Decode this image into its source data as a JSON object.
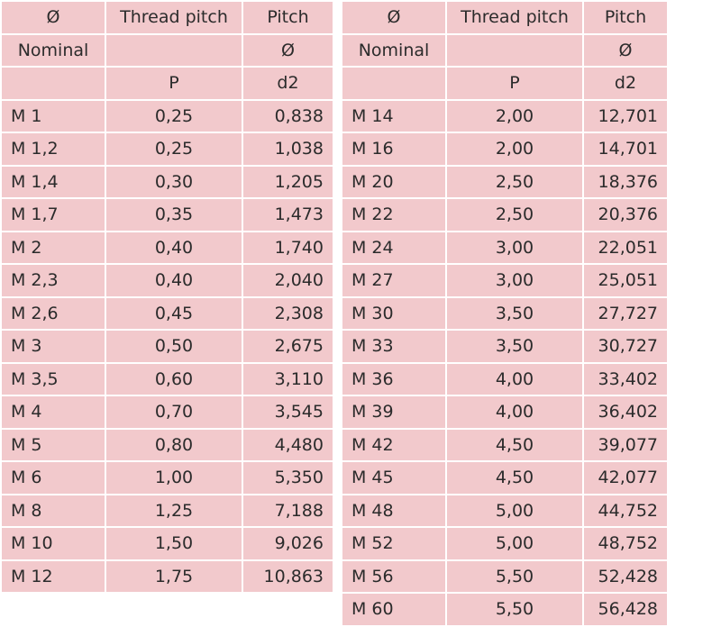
{
  "tables": [
    {
      "header": [
        [
          "Ø",
          "Thread pitch",
          "Pitch"
        ],
        [
          "Nominal",
          null,
          "Ø"
        ],
        [
          null,
          "P",
          "d2"
        ]
      ],
      "rows": [
        [
          "M 1",
          "0,25",
          "0,838"
        ],
        [
          "M 1,2",
          "0,25",
          "1,038"
        ],
        [
          "M 1,4",
          "0,30",
          "1,205"
        ],
        [
          "M 1,7",
          "0,35",
          "1,473"
        ],
        [
          "M 2",
          "0,40",
          "1,740"
        ],
        [
          "M 2,3",
          "0,40",
          "2,040"
        ],
        [
          "M 2,6",
          "0,45",
          "2,308"
        ],
        [
          "M 3",
          "0,50",
          "2,675"
        ],
        [
          "M 3,5",
          "0,60",
          "3,110"
        ],
        [
          "M 4",
          "0,70",
          "3,545"
        ],
        [
          "M 5",
          "0,80",
          "4,480"
        ],
        [
          "M 6",
          "1,00",
          "5,350"
        ],
        [
          "M 8",
          "1,25",
          "7,188"
        ],
        [
          "M 10",
          "1,50",
          "9,026"
        ],
        [
          "M 12",
          "1,75",
          "10,863"
        ]
      ]
    },
    {
      "header": [
        [
          "Ø",
          "Thread pitch",
          "Pitch"
        ],
        [
          "Nominal",
          null,
          "Ø"
        ],
        [
          null,
          "P",
          "d2"
        ]
      ],
      "rows": [
        [
          "M 14",
          "2,00",
          "12,701"
        ],
        [
          "M 16",
          "2,00",
          "14,701"
        ],
        [
          "M 20",
          "2,50",
          "18,376"
        ],
        [
          "M 22",
          "2,50",
          "20,376"
        ],
        [
          "M 24",
          "3,00",
          "22,051"
        ],
        [
          "M 27",
          "3,00",
          "25,051"
        ],
        [
          "M 30",
          "3,50",
          "27,727"
        ],
        [
          "M 33",
          "3,50",
          "30,727"
        ],
        [
          "M 36",
          "4,00",
          "33,402"
        ],
        [
          "M 39",
          "4,00",
          "36,402"
        ],
        [
          "M 42",
          "4,50",
          "39,077"
        ],
        [
          "M 45",
          "4,50",
          "42,077"
        ],
        [
          "M 48",
          "5,00",
          "44,752"
        ],
        [
          "M 52",
          "5,00",
          "48,752"
        ],
        [
          "M 56",
          "5,50",
          "52,428"
        ],
        [
          "M 60",
          "5,50",
          "56,428"
        ]
      ]
    }
  ]
}
